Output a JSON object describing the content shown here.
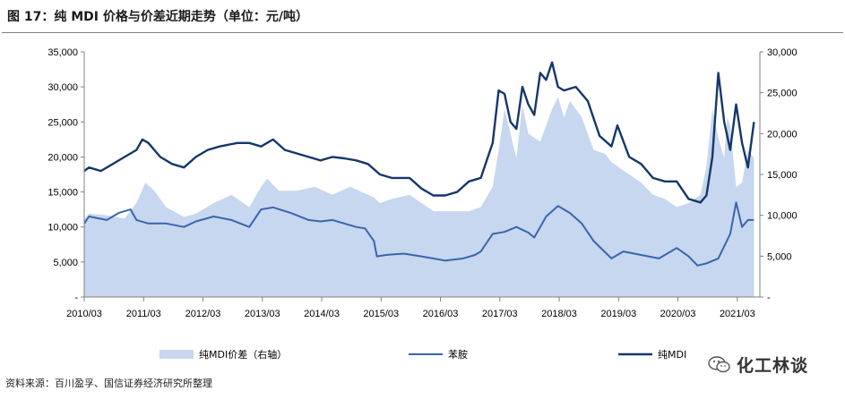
{
  "header": {
    "title": "图 17：纯 MDI 价格与价差近期走势（单位：元/吨）"
  },
  "source": "资料来源：百川盈孚、国信证券经济研究所整理",
  "logo": {
    "text": "化工林谈"
  },
  "chart_data": {
    "type": "line",
    "x_labels": [
      "2010/03",
      "2011/03",
      "2012/03",
      "2013/03",
      "2014/03",
      "2015/03",
      "2016/03",
      "2017/03",
      "2018/03",
      "2019/03",
      "2020/03",
      "2021/03"
    ],
    "y_left": {
      "min": 0,
      "max": 35000,
      "ticks": [
        "-",
        "5,000",
        "10,000",
        "15,000",
        "20,000",
        "25,000",
        "30,000",
        "35,000"
      ]
    },
    "y_right": {
      "min": 0,
      "max": 30000,
      "ticks": [
        "-",
        "5,000",
        "10,000",
        "15,000",
        "20,000",
        "25,000",
        "30,000"
      ]
    },
    "series": [
      {
        "name": "纯MDI价差（右轴）",
        "kind": "area",
        "axis": "right",
        "color": "#c6d7ef",
        "x": [
          2010.12,
          2010.2,
          2010.5,
          2010.8,
          2011.0,
          2011.15,
          2011.3,
          2011.5,
          2011.8,
          2012.0,
          2012.3,
          2012.6,
          2012.9,
          2013.1,
          2013.2,
          2013.4,
          2013.7,
          2014.0,
          2014.3,
          2014.6,
          2014.9,
          2015.0,
          2015.1,
          2015.3,
          2015.6,
          2015.9,
          2016.0,
          2016.3,
          2016.6,
          2016.8,
          2017.0,
          2017.1,
          2017.2,
          2017.3,
          2017.4,
          2017.5,
          2017.6,
          2017.8,
          2017.9,
          2018.0,
          2018.1,
          2018.2,
          2018.3,
          2018.5,
          2018.7,
          2018.9,
          2019.0,
          2019.1,
          2019.3,
          2019.5,
          2019.7,
          2019.9,
          2020.1,
          2020.3,
          2020.5,
          2020.6,
          2020.7,
          2020.8,
          2020.9,
          2020.95,
          2021.0,
          2021.1,
          2021.2,
          2021.3,
          2021.4
        ],
        "values": [
          9500,
          10200,
          10000,
          9600,
          11500,
          14000,
          13000,
          11000,
          9800,
          10200,
          11500,
          12500,
          11000,
          13500,
          14500,
          13000,
          13000,
          13500,
          12500,
          13500,
          12500,
          12200,
          11500,
          12000,
          12500,
          11000,
          10500,
          10500,
          10500,
          11000,
          13500,
          18000,
          23000,
          20000,
          17000,
          23500,
          20000,
          19000,
          21000,
          23000,
          24500,
          22000,
          24000,
          22000,
          18000,
          17500,
          16500,
          16000,
          15000,
          14000,
          12500,
          12000,
          11000,
          11500,
          12500,
          16000,
          23000,
          19500,
          17000,
          22000,
          21000,
          13500,
          14000,
          18000,
          17000
        ]
      },
      {
        "name": "苯胺",
        "kind": "line",
        "axis": "left",
        "color": "#3c64ac",
        "x": [
          2010.12,
          2010.2,
          2010.5,
          2010.7,
          2010.9,
          2011.0,
          2011.2,
          2011.5,
          2011.8,
          2012.0,
          2012.3,
          2012.6,
          2012.9,
          2013.1,
          2013.3,
          2013.6,
          2013.9,
          2014.1,
          2014.3,
          2014.5,
          2014.7,
          2014.85,
          2015.0,
          2015.05,
          2015.2,
          2015.5,
          2015.8,
          2016.0,
          2016.2,
          2016.5,
          2016.7,
          2016.8,
          2017.0,
          2017.2,
          2017.4,
          2017.6,
          2017.7,
          2017.9,
          2018.1,
          2018.3,
          2018.5,
          2018.7,
          2019.0,
          2019.2,
          2019.5,
          2019.8,
          2020.0,
          2020.1,
          2020.3,
          2020.45,
          2020.6,
          2020.8,
          2021.0,
          2021.1,
          2021.2,
          2021.3,
          2021.4
        ],
        "values": [
          10500,
          11500,
          11000,
          12000,
          12500,
          11000,
          10500,
          10500,
          10000,
          10800,
          11500,
          11000,
          10000,
          12500,
          12800,
          12000,
          11000,
          10800,
          11000,
          10500,
          10000,
          9800,
          8000,
          5800,
          6000,
          6200,
          5800,
          5500,
          5200,
          5500,
          6000,
          6500,
          9000,
          9300,
          10000,
          9200,
          8500,
          11500,
          13000,
          12000,
          10500,
          8000,
          5500,
          6500,
          6000,
          5500,
          6500,
          7000,
          5800,
          4500,
          4800,
          5500,
          9000,
          13500,
          10000,
          11000,
          11000
        ]
      },
      {
        "name": "纯MDI",
        "kind": "line",
        "axis": "left",
        "color": "#15376b",
        "x": [
          2010.12,
          2010.2,
          2010.4,
          2010.6,
          2010.8,
          2011.0,
          2011.1,
          2011.2,
          2011.4,
          2011.6,
          2011.8,
          2012.0,
          2012.2,
          2012.4,
          2012.7,
          2012.9,
          2013.1,
          2013.3,
          2013.5,
          2013.7,
          2013.9,
          2014.1,
          2014.3,
          2014.5,
          2014.7,
          2014.9,
          2015.1,
          2015.3,
          2015.6,
          2015.8,
          2016.0,
          2016.2,
          2016.4,
          2016.6,
          2016.8,
          2017.0,
          2017.1,
          2017.2,
          2017.3,
          2017.4,
          2017.5,
          2017.6,
          2017.7,
          2017.8,
          2017.9,
          2018.0,
          2018.1,
          2018.2,
          2018.4,
          2018.6,
          2018.8,
          2019.0,
          2019.1,
          2019.3,
          2019.5,
          2019.7,
          2019.9,
          2020.1,
          2020.3,
          2020.5,
          2020.6,
          2020.7,
          2020.8,
          2020.9,
          2021.0,
          2021.1,
          2021.2,
          2021.3,
          2021.4
        ],
        "values": [
          18000,
          18500,
          18000,
          19000,
          20000,
          21000,
          22500,
          22000,
          20000,
          19000,
          18500,
          20000,
          21000,
          21500,
          22000,
          22000,
          21500,
          22500,
          21000,
          20500,
          20000,
          19500,
          20000,
          19800,
          19500,
          19000,
          17500,
          17000,
          17000,
          15500,
          14500,
          14500,
          15000,
          16500,
          17000,
          22000,
          29500,
          29000,
          25000,
          24000,
          30000,
          27500,
          26000,
          32000,
          31000,
          33500,
          30000,
          29500,
          30000,
          28000,
          23000,
          21500,
          24500,
          20000,
          19000,
          17000,
          16500,
          16500,
          14000,
          13500,
          14500,
          20000,
          32000,
          25000,
          21000,
          27500,
          22000,
          18500,
          25000
        ]
      }
    ]
  }
}
